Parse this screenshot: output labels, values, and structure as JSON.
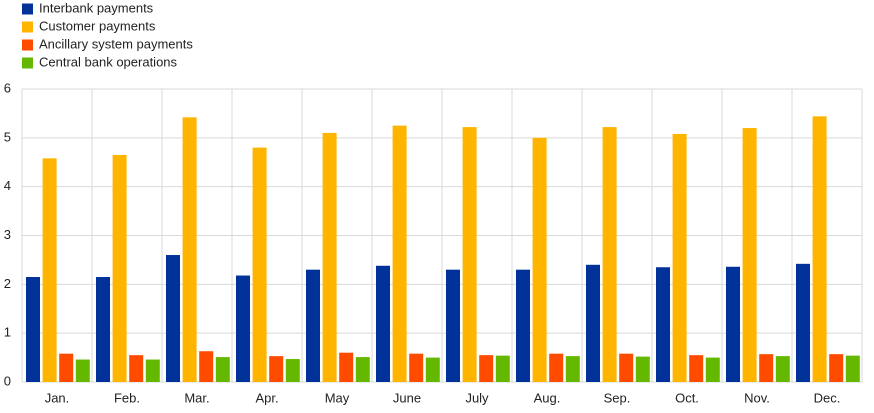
{
  "chart_data": {
    "type": "bar",
    "categories": [
      "Jan.",
      "Feb.",
      "Mar.",
      "Apr.",
      "May",
      "June",
      "July",
      "Aug.",
      "Sep.",
      "Oct.",
      "Nov.",
      "Dec."
    ],
    "series": [
      {
        "name": "Interbank payments",
        "color": "#003299",
        "values": [
          2.15,
          2.15,
          2.6,
          2.18,
          2.3,
          2.38,
          2.3,
          2.3,
          2.4,
          2.35,
          2.36,
          2.42
        ]
      },
      {
        "name": "Customer payments",
        "color": "#ffb400",
        "values": [
          4.58,
          4.65,
          5.42,
          4.8,
          5.1,
          5.25,
          5.22,
          5.0,
          5.22,
          5.08,
          5.2,
          5.44
        ]
      },
      {
        "name": "Ancillary system payments",
        "color": "#ff4b00",
        "values": [
          0.58,
          0.55,
          0.63,
          0.53,
          0.6,
          0.58,
          0.55,
          0.58,
          0.58,
          0.55,
          0.57,
          0.57
        ]
      },
      {
        "name": "Central bank operations",
        "color": "#65b800",
        "values": [
          0.46,
          0.46,
          0.51,
          0.47,
          0.51,
          0.5,
          0.54,
          0.53,
          0.52,
          0.5,
          0.53,
          0.54
        ]
      }
    ],
    "ylim": [
      0,
      6
    ],
    "yticks": [
      0,
      1,
      2,
      3,
      4,
      5,
      6
    ],
    "grid": true
  }
}
